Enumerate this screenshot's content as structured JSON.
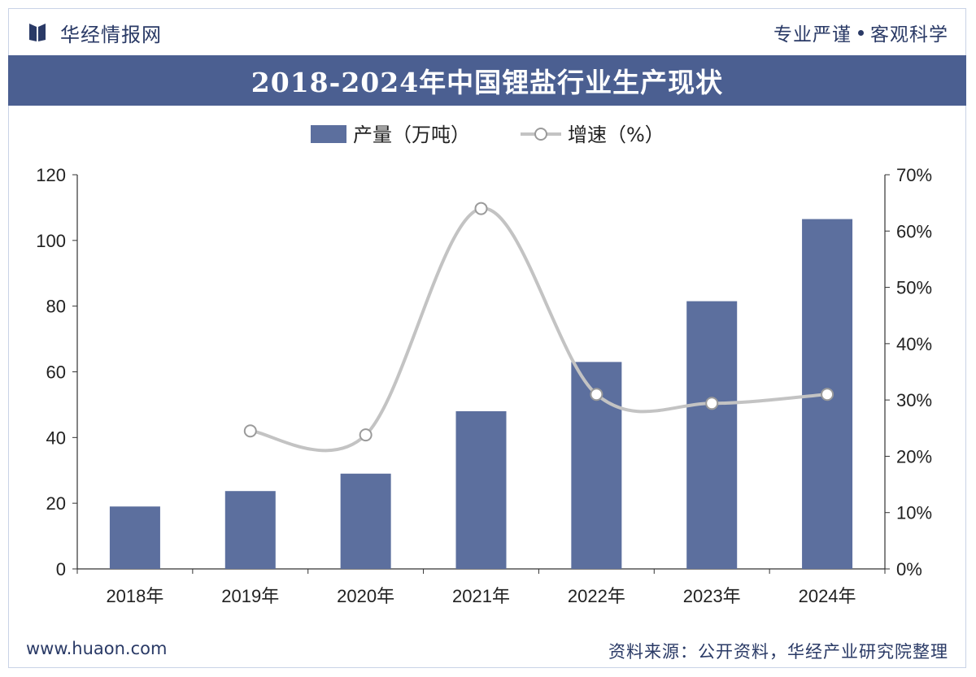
{
  "header": {
    "brand": "华经情报网",
    "slogan_left": "专业严谨",
    "slogan_right": "客观科学"
  },
  "footer": {
    "website": "www.huaon.com",
    "source": "资料来源：公开资料，华经产业研究院整理"
  },
  "colors": {
    "bar": "#5c6f9e",
    "line": "#c3c3c3",
    "title_bg": "#4b5f91",
    "text": "#2a3a66"
  },
  "chart_data": {
    "type": "bar",
    "title": "2018-2024年中国锂盐行业生产现状",
    "categories": [
      "2018年",
      "2019年",
      "2020年",
      "2021年",
      "2022年",
      "2023年",
      "2024年"
    ],
    "series": [
      {
        "name": "产量（万吨）",
        "type": "bar",
        "axis": "left",
        "values": [
          19,
          23.7,
          29,
          48,
          63,
          81.5,
          106.5
        ]
      },
      {
        "name": "增速（%）",
        "type": "line",
        "axis": "right",
        "values": [
          null,
          24.5,
          23.8,
          64,
          31,
          29.4,
          31
        ]
      }
    ],
    "y_left": {
      "ylim": [
        0,
        120
      ],
      "ticks": [
        "0",
        "20",
        "40",
        "60",
        "80",
        "100",
        "120"
      ]
    },
    "y_right": {
      "ylim": [
        0,
        70
      ],
      "ticks": [
        "0%",
        "10%",
        "20%",
        "30%",
        "40%",
        "50%",
        "60%",
        "70%"
      ]
    },
    "legend": "top-center",
    "grid": false
  }
}
